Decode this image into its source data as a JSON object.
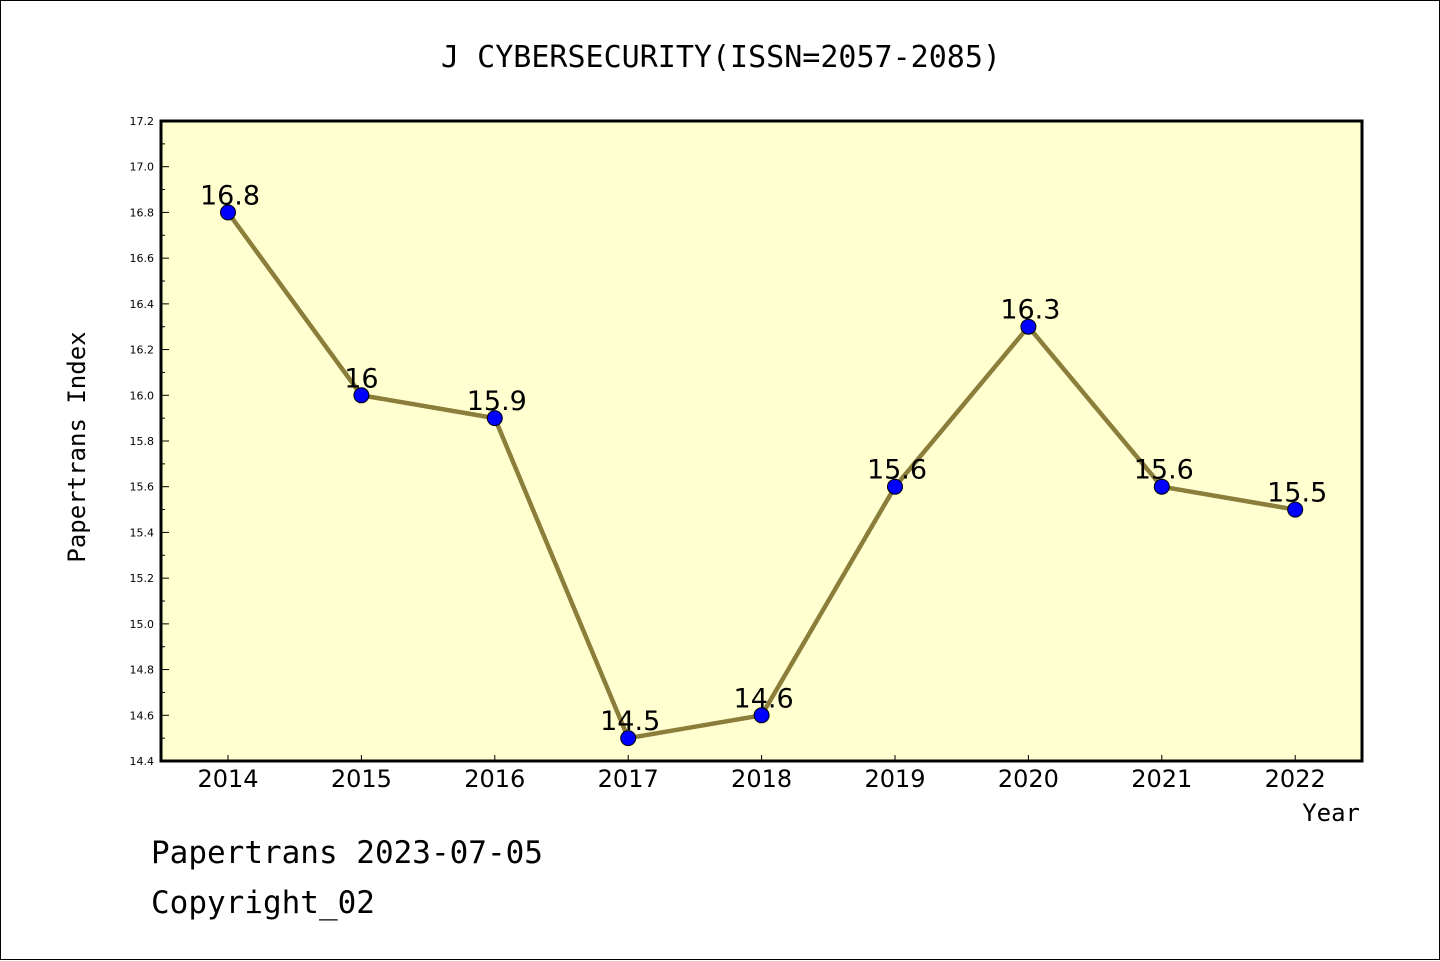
{
  "chart_data": {
    "type": "line",
    "title": "J CYBERSECURITY(ISSN=2057-2085)",
    "xlabel": "Year",
    "ylabel": "Papertrans Index",
    "categories": [
      "2014",
      "2015",
      "2016",
      "2017",
      "2018",
      "2019",
      "2020",
      "2021",
      "2022"
    ],
    "series": [
      {
        "values": [
          16.8,
          16.0,
          15.9,
          14.5,
          14.6,
          15.6,
          16.3,
          15.6,
          15.5
        ],
        "labels": [
          "16.8",
          "16",
          "15.9",
          "14.5",
          "14.6",
          "15.6",
          "16.3",
          "15.6",
          "15.5"
        ]
      }
    ],
    "ylim": [
      14.4,
      17.2
    ],
    "yticks": [
      "14.4",
      "14.6",
      "14.8",
      "15.0",
      "15.2",
      "15.4",
      "15.6",
      "15.8",
      "16.0",
      "16.2",
      "16.4",
      "16.6",
      "16.8",
      "17.0",
      "17.2"
    ],
    "grid": false,
    "colors": {
      "plot_background": "#ffffd0",
      "line": "#8b7d3a",
      "marker": "#0000ff"
    }
  },
  "footer": {
    "date_line": "Papertrans 2023-07-05",
    "copyright": "Copyright_02"
  }
}
